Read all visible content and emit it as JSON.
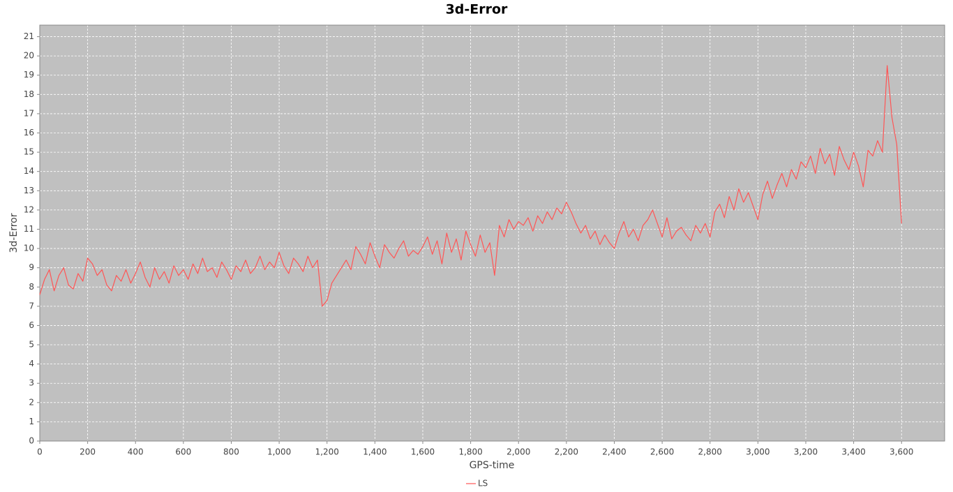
{
  "chart_data": {
    "type": "line",
    "title": "3d-Error",
    "x_label": "GPS-time",
    "y_label": "3d-Error",
    "x": [
      0,
      20,
      40,
      60,
      80,
      100,
      120,
      140,
      160,
      180,
      200,
      220,
      240,
      260,
      280,
      300,
      320,
      340,
      360,
      380,
      400,
      420,
      440,
      460,
      480,
      500,
      520,
      540,
      560,
      580,
      600,
      620,
      640,
      660,
      680,
      700,
      720,
      740,
      760,
      780,
      800,
      820,
      840,
      860,
      880,
      900,
      920,
      940,
      960,
      980,
      1000,
      1020,
      1040,
      1060,
      1080,
      1100,
      1120,
      1140,
      1160,
      1180,
      1200,
      1220,
      1240,
      1260,
      1280,
      1300,
      1320,
      1340,
      1360,
      1380,
      1400,
      1420,
      1440,
      1460,
      1480,
      1500,
      1520,
      1540,
      1560,
      1580,
      1600,
      1620,
      1640,
      1660,
      1680,
      1700,
      1720,
      1740,
      1760,
      1780,
      1800,
      1820,
      1840,
      1860,
      1880,
      1900,
      1920,
      1940,
      1960,
      1980,
      2000,
      2020,
      2040,
      2060,
      2080,
      2100,
      2120,
      2140,
      2160,
      2180,
      2200,
      2220,
      2240,
      2260,
      2280,
      2300,
      2320,
      2340,
      2360,
      2380,
      2400,
      2420,
      2440,
      2460,
      2480,
      2500,
      2520,
      2540,
      2560,
      2580,
      2600,
      2620,
      2640,
      2660,
      2680,
      2700,
      2720,
      2740,
      2760,
      2780,
      2800,
      2820,
      2840,
      2860,
      2880,
      2900,
      2920,
      2940,
      2960,
      2980,
      3000,
      3020,
      3040,
      3060,
      3080,
      3100,
      3120,
      3140,
      3160,
      3180,
      3200,
      3220,
      3240,
      3260,
      3280,
      3300,
      3320,
      3340,
      3360,
      3380,
      3400,
      3420,
      3440,
      3460,
      3480,
      3500,
      3520,
      3540,
      3560,
      3580,
      3600
    ],
    "series": [
      {
        "name": "LS",
        "color": "#ff5555",
        "values": [
          7.6,
          8.4,
          8.9,
          7.8,
          8.6,
          9.0,
          8.1,
          7.9,
          8.7,
          8.3,
          9.5,
          9.2,
          8.6,
          8.9,
          8.1,
          7.8,
          8.6,
          8.3,
          8.9,
          8.2,
          8.7,
          9.3,
          8.5,
          8.0,
          9.0,
          8.4,
          8.8,
          8.2,
          9.1,
          8.6,
          8.9,
          8.4,
          9.2,
          8.7,
          9.5,
          8.8,
          9.0,
          8.5,
          9.3,
          8.9,
          8.4,
          9.1,
          8.8,
          9.4,
          8.7,
          9.0,
          9.6,
          8.9,
          9.3,
          9.0,
          9.8,
          9.1,
          8.7,
          9.5,
          9.2,
          8.8,
          9.6,
          9.0,
          9.4,
          7.0,
          7.3,
          8.2,
          8.6,
          9.0,
          9.4,
          8.9,
          10.1,
          9.7,
          9.2,
          10.3,
          9.6,
          9.0,
          10.2,
          9.8,
          9.5,
          10.0,
          10.4,
          9.6,
          9.9,
          9.7,
          10.1,
          10.6,
          9.7,
          10.4,
          9.2,
          10.8,
          9.8,
          10.5,
          9.4,
          10.9,
          10.2,
          9.6,
          10.7,
          9.8,
          10.3,
          8.6,
          11.2,
          10.6,
          11.5,
          11.0,
          11.4,
          11.2,
          11.6,
          10.9,
          11.7,
          11.3,
          11.9,
          11.5,
          12.1,
          11.8,
          12.4,
          11.9,
          11.3,
          10.8,
          11.2,
          10.5,
          10.9,
          10.2,
          10.7,
          10.3,
          10.0,
          10.8,
          11.4,
          10.6,
          11.0,
          10.4,
          11.2,
          11.5,
          12.0,
          11.3,
          10.6,
          11.6,
          10.5,
          10.9,
          11.1,
          10.7,
          10.4,
          11.2,
          10.8,
          11.3,
          10.6,
          11.9,
          12.3,
          11.6,
          12.7,
          12.0,
          13.1,
          12.4,
          12.9,
          12.2,
          11.5,
          12.8,
          13.5,
          12.6,
          13.3,
          13.9,
          13.2,
          14.1,
          13.6,
          14.5,
          14.2,
          14.8,
          13.9,
          15.2,
          14.4,
          14.9,
          13.8,
          15.3,
          14.6,
          14.1,
          15.0,
          14.3,
          13.2,
          15.1,
          14.8,
          15.6,
          15.0,
          19.5,
          16.8,
          15.4,
          11.3
        ]
      }
    ],
    "xlim": [
      0,
      3780
    ],
    "ylim": [
      0,
      21.6
    ],
    "xticks": [
      0,
      200,
      400,
      600,
      800,
      {
        "value": 1000,
        "label": "1,000"
      },
      {
        "value": 1200,
        "label": "1,200"
      },
      {
        "value": 1400,
        "label": "1,400"
      },
      {
        "value": 1600,
        "label": "1,600"
      },
      {
        "value": 1800,
        "label": "1,800"
      },
      {
        "value": 2000,
        "label": "2,000"
      },
      {
        "value": 2200,
        "label": "2,200"
      },
      {
        "value": 2400,
        "label": "2,400"
      },
      {
        "value": 2600,
        "label": "2,600"
      },
      {
        "value": 2800,
        "label": "2,800"
      },
      {
        "value": 3000,
        "label": "3,000"
      },
      {
        "value": 3200,
        "label": "3,200"
      },
      {
        "value": 3400,
        "label": "3,400"
      },
      {
        "value": 3600,
        "label": "3,600"
      }
    ],
    "yticks": [
      0,
      1,
      2,
      3,
      4,
      5,
      6,
      7,
      8,
      9,
      10,
      11,
      12,
      13,
      14,
      15,
      16,
      17,
      18,
      19,
      20,
      21
    ],
    "grid": true,
    "legend": "bottom",
    "plot_background": "#c0c0c0"
  }
}
